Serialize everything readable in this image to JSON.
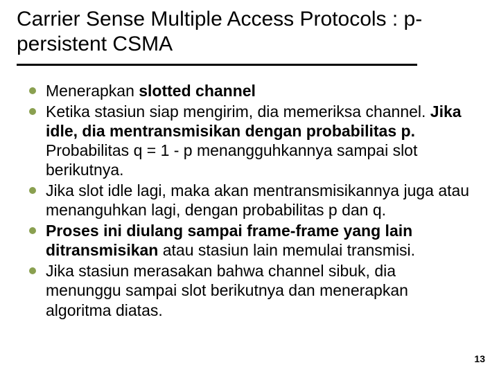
{
  "title": "Carrier Sense Multiple Access Protocols : p-persistent CSMA",
  "bullets": [
    {
      "pre": "Menerapkan ",
      "bold": "slotted channel",
      "post": ""
    },
    {
      "pre": "Ketika stasiun siap mengirim, dia memeriksa channel. ",
      "bold": "Jika idle, dia mentransmisikan dengan probabilitas p.",
      "post": " Probabilitas q = 1 - p menangguhkannya sampai slot berikutnya."
    },
    {
      "pre": "Jika slot idle lagi, maka akan mentransmisikannya juga atau menanguhkan lagi, dengan probabilitas p dan q.",
      "bold": "",
      "post": ""
    },
    {
      "pre": "",
      "bold": "Proses ini diulang sampai frame-frame yang lain ditransmisikan",
      "post": " atau stasiun lain memulai transmisi."
    },
    {
      "pre": "Jika stasiun merasakan bahwa channel sibuk, dia menunggu sampai slot berikutnya dan menerapkan algoritma diatas.",
      "bold": "",
      "post": ""
    }
  ],
  "page_number": "13",
  "colors": {
    "bullet": "#8aa050",
    "text": "#000000",
    "background": "#ffffff",
    "underline": "#000000"
  }
}
